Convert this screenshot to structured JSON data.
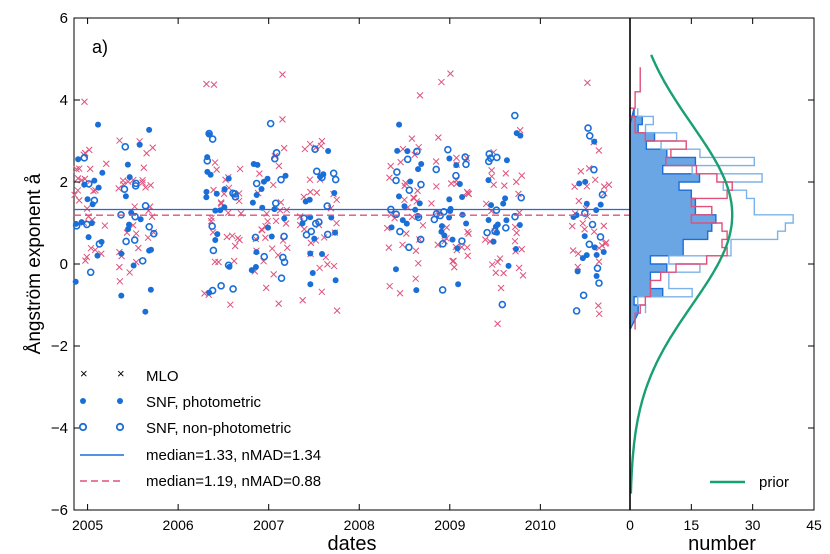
{
  "chart_data": {
    "type": "scatter",
    "panel_label": "a)",
    "ylabel": "Ångström exponent å",
    "ylim": [
      -6,
      6
    ],
    "yticks": [
      "6",
      "4",
      "2",
      "0",
      "−2",
      "−4",
      "−6"
    ],
    "yticks_values": [
      6,
      4,
      2,
      0,
      -2,
      -4,
      -6
    ],
    "time": {
      "xlabel": "dates",
      "xlim": [
        2004.85,
        2010.99
      ],
      "xticks": [
        "2005",
        "2006",
        "2007",
        "2008",
        "2009",
        "2010"
      ],
      "xticks_values": [
        2005,
        2006,
        2007,
        2008,
        2009,
        2010
      ],
      "median_snf": 1.33,
      "median_mlo": 1.19
    },
    "histogram": {
      "xlabel": "number",
      "xlim": [
        0,
        45
      ],
      "xticks": [
        "0",
        "15",
        "30",
        "45"
      ],
      "xticks_values": [
        0,
        15,
        30,
        45
      ],
      "prior_mean": 1.2,
      "prior_sigma": 2.2,
      "prior_peak": 25
    },
    "legend": {
      "mlo": "MLO",
      "snf_phot": "SNF, photometric",
      "snf_nonphot": "SNF, non-photometric",
      "median_snf": "median=1.33, nMAD=1.34",
      "median_mlo": "median=1.19, nMAD=0.88",
      "prior": "prior"
    },
    "seasons": [
      2005.0,
      2005.55,
      2006.5,
      2007.0,
      2007.55,
      2008.5,
      2009.0,
      2009.6,
      2010.55
    ],
    "colors": {
      "mlo": "#e0507a",
      "snf": "#1a6ed8",
      "snf_fill": "#6aa6e4",
      "snf_light": "#7bb3e8",
      "prior": "#18a070",
      "axis": "#000000"
    }
  }
}
